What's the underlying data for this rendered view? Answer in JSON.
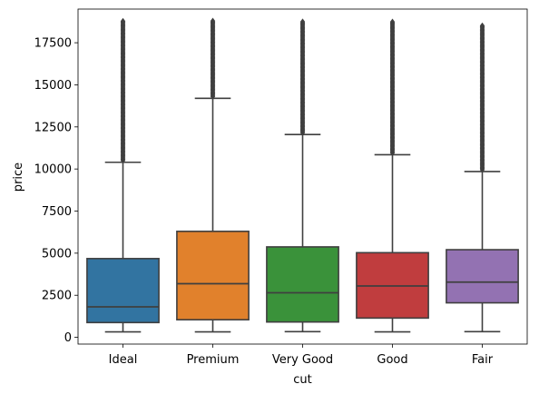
{
  "chart_data": {
    "type": "box",
    "xlabel": "cut",
    "ylabel": "price",
    "ylim": [
      -400,
      19500
    ],
    "yticks": [
      0,
      2500,
      5000,
      7500,
      10000,
      12500,
      15000,
      17500
    ],
    "grid": false,
    "categories": [
      "Ideal",
      "Premium",
      "Very Good",
      "Good",
      "Fair"
    ],
    "colors": [
      "#3274a1",
      "#e1812c",
      "#3a923a",
      "#c03d3e",
      "#9372b2"
    ],
    "boxes": [
      {
        "category": "Ideal",
        "min": 326,
        "q1": 878,
        "median": 1810,
        "q3": 4678,
        "whisker_high": 10400,
        "outlier_max": 18806
      },
      {
        "category": "Premium",
        "min": 326,
        "q1": 1046,
        "median": 3185,
        "q3": 6296,
        "whisker_high": 14200,
        "outlier_max": 18823
      },
      {
        "category": "Very Good",
        "min": 336,
        "q1": 912,
        "median": 2648,
        "q3": 5373,
        "whisker_high": 12050,
        "outlier_max": 18818
      },
      {
        "category": "Good",
        "min": 327,
        "q1": 1145,
        "median": 3050,
        "q3": 5028,
        "whisker_high": 10850,
        "outlier_max": 18788
      },
      {
        "category": "Fair",
        "min": 337,
        "q1": 2050,
        "median": 3282,
        "q3": 5206,
        "whisker_high": 9850,
        "outlier_max": 18574
      }
    ]
  }
}
